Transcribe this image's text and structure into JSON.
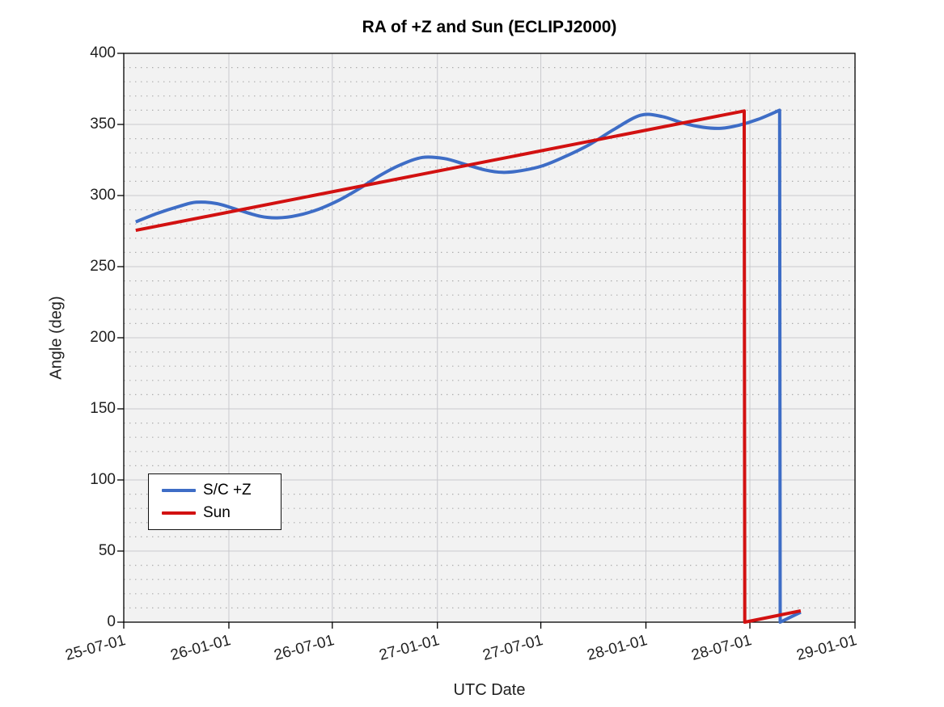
{
  "chart_data": {
    "type": "line",
    "title": "RA of +Z and Sun (ECLIPJ2000)",
    "xlabel": "UTC Date",
    "ylabel": "Angle (deg)",
    "x_axis": {
      "type": "date",
      "range": [
        "2025-07-01",
        "2029-01-01"
      ],
      "tick_labels": [
        "25-07-01",
        "26-01-01",
        "26-07-01",
        "27-01-01",
        "27-07-01",
        "28-01-01",
        "28-07-01",
        "29-01-01"
      ],
      "tick_label_rotation_deg": -15
    },
    "y_axis": {
      "range": [
        0,
        400
      ],
      "ticks": [
        0,
        50,
        100,
        150,
        200,
        250,
        300,
        350,
        400
      ],
      "minor_step": 10
    },
    "grid": {
      "major": "solid",
      "minor_y": "dotted"
    },
    "colors": {
      "plot_background": "#f2f2f2",
      "major_grid": "#c9c9cd",
      "minor_grid": "#ababab",
      "axis_box": "#000000",
      "sc_z_line": "#3e6dc6",
      "sun_line": "#d21111"
    },
    "legend": {
      "position": "middle-left",
      "entries": [
        {
          "label": "S/C +Z",
          "color": "#3e6dc6"
        },
        {
          "label": "Sun",
          "color": "#d21111"
        }
      ]
    },
    "series": [
      {
        "name": "S/C +Z",
        "color": "#3e6dc6",
        "points": [
          [
            "2025-07-22",
            281.5
          ],
          [
            "2025-08-29",
            287.5
          ],
          [
            "2025-10-07",
            292.5
          ],
          [
            "2025-11-05",
            295.3
          ],
          [
            "2025-12-11",
            294.3
          ],
          [
            "2026-01-18",
            289.8
          ],
          [
            "2026-02-25",
            285.4
          ],
          [
            "2026-03-27",
            284.3
          ],
          [
            "2026-05-01",
            286.0
          ],
          [
            "2026-06-08",
            290.5
          ],
          [
            "2026-07-14",
            297.0
          ],
          [
            "2026-08-18",
            305.0
          ],
          [
            "2026-09-22",
            314.0
          ],
          [
            "2026-10-28",
            321.5
          ],
          [
            "2026-12-06",
            326.8
          ],
          [
            "2027-01-13",
            326.0
          ],
          [
            "2027-02-18",
            322.0
          ],
          [
            "2027-03-25",
            318.0
          ],
          [
            "2027-04-25",
            316.3
          ],
          [
            "2027-05-28",
            317.5
          ],
          [
            "2027-07-05",
            321.0
          ],
          [
            "2027-08-13",
            327.5
          ],
          [
            "2027-09-25",
            336.0
          ],
          [
            "2027-11-06",
            346.5
          ],
          [
            "2027-12-23",
            356.5
          ],
          [
            "2028-01-30",
            355.5
          ],
          [
            "2028-03-05",
            351.0
          ],
          [
            "2028-04-10",
            348.0
          ],
          [
            "2028-05-12",
            347.3
          ],
          [
            "2028-06-12",
            349.5
          ],
          [
            "2028-07-15",
            353.5
          ],
          [
            "2028-08-22",
            360.0
          ],
          [
            "2028-08-23",
            0.0
          ],
          [
            "2028-09-28",
            7.0
          ]
        ]
      },
      {
        "name": "Sun",
        "color": "#d21111",
        "points": [
          [
            "2025-07-22",
            275.5
          ],
          [
            "2028-06-21",
            359.5
          ],
          [
            "2028-06-22",
            0.0
          ],
          [
            "2028-09-28",
            8.0
          ]
        ]
      }
    ]
  }
}
